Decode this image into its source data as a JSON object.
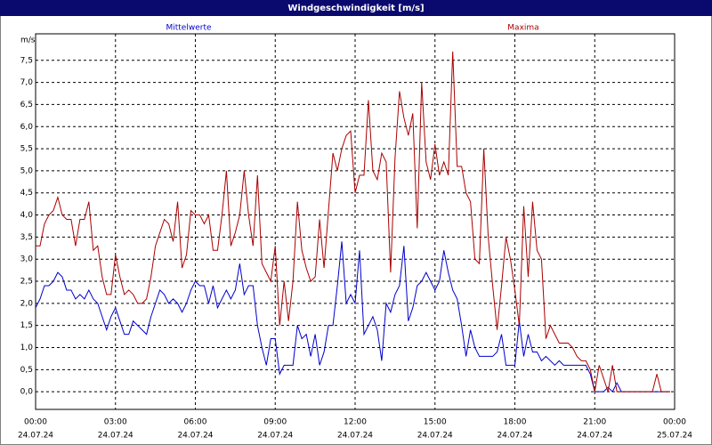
{
  "chart_data": {
    "type": "line",
    "title": "Windgeschwindigkeit [m/s]",
    "y_label": "m/s",
    "x": [
      0,
      10,
      20,
      30,
      40,
      50,
      60,
      70,
      80,
      90,
      100,
      110,
      120,
      130,
      140,
      150,
      160,
      170,
      180,
      190,
      200,
      210,
      220,
      230,
      240,
      250,
      260,
      270,
      280,
      290,
      300,
      310,
      320,
      330,
      340,
      350,
      360,
      370,
      380,
      390,
      400,
      410,
      420,
      430,
      440,
      450,
      460,
      470,
      480,
      490,
      500,
      510,
      520,
      530,
      540,
      550,
      560,
      570,
      580,
      590,
      600,
      610,
      620,
      630,
      640,
      650,
      660,
      670,
      680,
      690,
      700,
      710,
      720,
      730,
      740,
      750,
      760,
      770,
      780,
      790,
      800,
      810,
      820,
      830,
      840,
      850,
      860,
      870,
      880,
      890,
      900,
      910,
      920,
      930,
      940,
      950,
      960,
      970,
      980,
      990,
      1000,
      1010,
      1020,
      1030,
      1040,
      1050,
      1060,
      1070,
      1080,
      1090,
      1100,
      1110,
      1120,
      1130,
      1140,
      1150,
      1160,
      1170,
      1180,
      1190,
      1200,
      1210,
      1220,
      1230,
      1240,
      1250,
      1260,
      1270,
      1280,
      1290,
      1300,
      1310,
      1320,
      1330,
      1340,
      1350,
      1360,
      1370,
      1380,
      1390,
      1400,
      1410,
      1420,
      1430
    ],
    "series": [
      {
        "name": "Mittelwerte",
        "color": "#0000cc",
        "values": [
          1.9,
          2.1,
          2.4,
          2.4,
          2.5,
          2.7,
          2.6,
          2.3,
          2.3,
          2.1,
          2.2,
          2.1,
          2.3,
          2.1,
          2.0,
          1.7,
          1.4,
          1.7,
          1.9,
          1.6,
          1.3,
          1.3,
          1.6,
          1.5,
          1.4,
          1.3,
          1.7,
          2.0,
          2.3,
          2.2,
          2.0,
          2.1,
          2.0,
          1.8,
          2.0,
          2.3,
          2.5,
          2.4,
          2.4,
          2.0,
          2.4,
          1.9,
          2.1,
          2.3,
          2.1,
          2.3,
          2.9,
          2.2,
          2.4,
          2.4,
          1.5,
          1.0,
          0.6,
          1.2,
          1.2,
          0.4,
          0.6,
          0.6,
          0.6,
          1.5,
          1.2,
          1.3,
          0.8,
          1.3,
          0.6,
          0.9,
          1.5,
          1.5,
          2.4,
          3.4,
          2.0,
          2.2,
          2.0,
          3.2,
          1.3,
          1.5,
          1.7,
          1.4,
          0.7,
          2.0,
          1.8,
          2.2,
          2.4,
          3.3,
          1.6,
          1.9,
          2.4,
          2.5,
          2.7,
          2.5,
          2.3,
          2.5,
          3.2,
          2.7,
          2.3,
          2.1,
          1.5,
          0.8,
          1.4,
          1.0,
          0.8,
          0.8,
          0.8,
          0.8,
          0.9,
          1.3,
          0.6,
          0.6,
          0.6,
          1.6,
          0.8,
          1.3,
          0.9,
          0.9,
          0.7,
          0.8,
          0.7,
          0.6,
          0.7,
          0.6,
          0.6,
          0.6,
          0.6,
          0.6,
          0.6,
          0.4,
          0.0,
          0.0,
          0.0,
          0.1,
          0.0,
          0.2,
          0.0,
          0,
          0,
          0,
          0,
          0,
          0,
          0,
          0,
          0,
          0,
          0
        ]
      },
      {
        "name": "Maxima",
        "color": "#aa0000",
        "values": [
          3.3,
          3.3,
          3.8,
          4.0,
          4.1,
          4.4,
          4.0,
          3.9,
          3.9,
          3.3,
          3.9,
          3.9,
          4.3,
          3.2,
          3.3,
          2.6,
          2.2,
          2.2,
          3.1,
          2.6,
          2.2,
          2.3,
          2.2,
          2.0,
          2.0,
          2.1,
          2.6,
          3.3,
          3.6,
          3.9,
          3.8,
          3.4,
          4.3,
          2.8,
          3.1,
          4.1,
          4.0,
          4.0,
          3.8,
          4.0,
          3.2,
          3.2,
          4.0,
          5.0,
          3.3,
          3.6,
          4.0,
          5.0,
          4.0,
          3.3,
          4.9,
          2.9,
          2.7,
          2.5,
          3.3,
          1.5,
          2.5,
          1.6,
          2.5,
          4.3,
          3.2,
          2.8,
          2.5,
          2.6,
          3.9,
          2.8,
          4.1,
          5.4,
          5.0,
          5.5,
          5.8,
          5.9,
          4.5,
          4.9,
          4.9,
          6.6,
          5.0,
          4.8,
          5.4,
          5.2,
          2.7,
          5.3,
          6.8,
          6.2,
          5.8,
          6.3,
          3.7,
          7.0,
          5.2,
          4.8,
          5.6,
          4.9,
          5.2,
          4.9,
          7.7,
          5.1,
          5.1,
          4.5,
          4.3,
          3.0,
          2.9,
          5.5,
          3.5,
          2.4,
          1.4,
          2.4,
          3.5,
          3.0,
          2.3,
          1.5,
          4.2,
          2.6,
          4.3,
          3.2,
          3.0,
          1.2,
          1.5,
          1.3,
          1.1,
          1.1,
          1.1,
          1.0,
          0.8,
          0.7,
          0.7,
          0.5,
          0.0,
          0.6,
          0.3,
          0.0,
          0.6,
          0.0,
          0,
          0,
          0,
          0,
          0,
          0,
          0,
          0,
          0.4,
          0,
          0,
          0
        ]
      }
    ],
    "xlim": [
      0,
      1440
    ],
    "xticks": [
      {
        "value": 0,
        "label": "00:00"
      },
      {
        "value": 180,
        "label": "03:00"
      },
      {
        "value": 360,
        "label": "06:00"
      },
      {
        "value": 540,
        "label": "09:00"
      },
      {
        "value": 720,
        "label": "12:00"
      },
      {
        "value": 900,
        "label": "15:00"
      },
      {
        "value": 1080,
        "label": "18:00"
      },
      {
        "value": 1260,
        "label": "21:00"
      },
      {
        "value": 1440,
        "label": "00:00"
      }
    ],
    "xtick_dates": [
      "24.07.24",
      "24.07.24",
      "24.07.24",
      "24.07.24",
      "24.07.24",
      "24.07.24",
      "24.07.24",
      "24.07.24",
      "25.07.24"
    ],
    "ylim": [
      -0.4,
      8.1
    ],
    "yticks": [
      {
        "value": 0,
        "label": "0,0"
      },
      {
        "value": 0.5,
        "label": "0,5"
      },
      {
        "value": 1,
        "label": "1,0"
      },
      {
        "value": 1.5,
        "label": "1,5"
      },
      {
        "value": 2,
        "label": "2,0"
      },
      {
        "value": 2.5,
        "label": "2,5"
      },
      {
        "value": 3,
        "label": "3,0"
      },
      {
        "value": 3.5,
        "label": "3,5"
      },
      {
        "value": 4,
        "label": "4,0"
      },
      {
        "value": 4.5,
        "label": "4,5"
      },
      {
        "value": 5,
        "label": "5,0"
      },
      {
        "value": 5.5,
        "label": "5,5"
      },
      {
        "value": 6,
        "label": "6,0"
      },
      {
        "value": 6.5,
        "label": "6,5"
      },
      {
        "value": 7,
        "label": "7,0"
      },
      {
        "value": 7.5,
        "label": "7,5"
      }
    ],
    "grid": true
  }
}
